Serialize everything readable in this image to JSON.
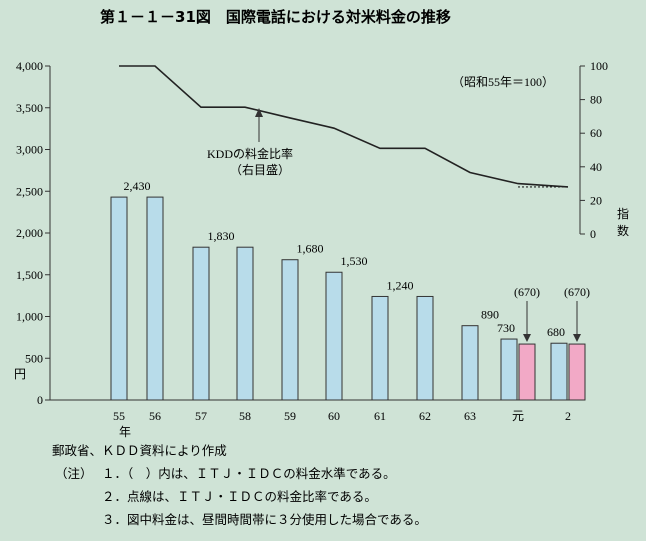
{
  "title": "第１－１－31図　国際電話における対米料金の推移",
  "chart_data": {
    "type": "bar+line",
    "categories": [
      "55",
      "56",
      "57",
      "58",
      "59",
      "60",
      "61",
      "62",
      "63",
      "元",
      "2"
    ],
    "x_unit": "年",
    "left_axis": {
      "unit": "円",
      "ylim": [
        0,
        4000
      ],
      "ticks": [
        "0",
        "500",
        "1,000",
        "1,500",
        "2,000",
        "2,500",
        "3,000",
        "3,500",
        "4,000"
      ]
    },
    "right_axis": {
      "label": "指数",
      "ylim": [
        0,
        100
      ],
      "ticks": [
        "0",
        "20",
        "40",
        "60",
        "80",
        "100"
      ]
    },
    "series": [
      {
        "name": "",
        "type": "bar",
        "color": "#b8dcea",
        "values": [
          2430,
          2430,
          1830,
          1830,
          1680,
          1530,
          1240,
          1240,
          890,
          730,
          680
        ],
        "labels": [
          "2,430",
          "",
          "1,830",
          "",
          "1,680",
          "1,530",
          "1,240",
          "",
          "890",
          "730",
          "680"
        ]
      },
      {
        "name": "",
        "type": "bar",
        "color": "#f2a9c6",
        "values": [
          null,
          null,
          null,
          null,
          null,
          null,
          null,
          null,
          null,
          670,
          670
        ],
        "labels": [
          "",
          "",
          "",
          "",
          "",
          "",
          "",
          "",
          "",
          "(670)",
          "(670)"
        ]
      },
      {
        "name": "KDDの料金比率",
        "type": "line",
        "axis": "right",
        "style": "solid",
        "points": [
          [
            0,
            100
          ],
          [
            1,
            100
          ],
          [
            2,
            75.5
          ],
          [
            3,
            75.5
          ],
          [
            4,
            69.1
          ],
          [
            5,
            63
          ],
          [
            6,
            51
          ],
          [
            7,
            51
          ],
          [
            8,
            36.6
          ],
          [
            9,
            30
          ],
          [
            10,
            28
          ]
        ]
      },
      {
        "name": "",
        "type": "line",
        "axis": "right",
        "style": "dotted",
        "points": [
          [
            9,
            28
          ],
          [
            10,
            28
          ]
        ]
      }
    ],
    "annotation": "KDDの料金比率",
    "annotation_sub": "（右目盛）",
    "base_note": "（昭和55年＝100）"
  },
  "source": "郵政省、ＫＤＤ資料により作成",
  "notes_label": "（注）",
  "notes": [
    "１．（　）内は、ＩＴＪ・ＩＤＣの料金水準である。",
    "２．点線は、ＩＴＪ・ＩＤＣの料金比率である。",
    "３．図中料金は、昼間時間帯に３分使用した場合である。"
  ]
}
